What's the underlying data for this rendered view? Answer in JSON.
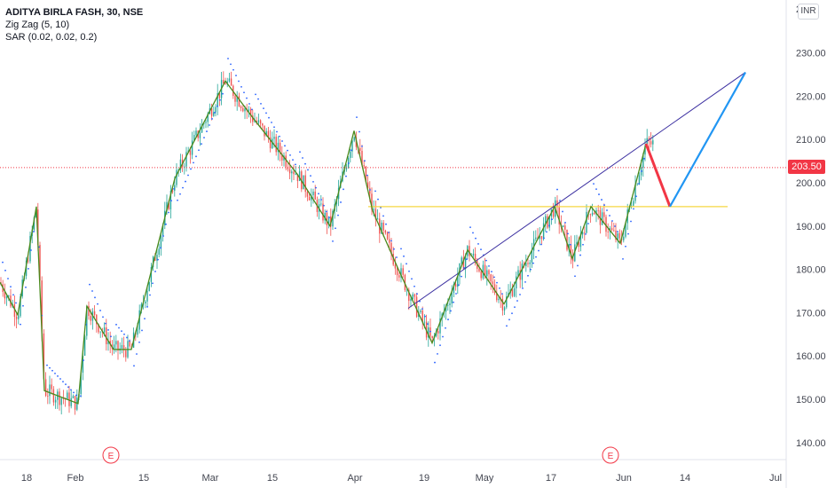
{
  "header": {
    "symbol_line": "ADITYA BIRLA FASH, 30, NSE",
    "indicator_1": "Zig Zag (5, 10)",
    "indicator_2": "SAR (0.02, 0.02, 0.2)",
    "currency": "INR"
  },
  "price_axis": {
    "top_partial_label": "2",
    "last_price": "203.50",
    "last_price_color": "#f23645"
  },
  "earnings_markers": [
    {
      "label": "E",
      "x_label_ref": "Feb-area"
    },
    {
      "label": "E",
      "x_label_ref": "Jun-area"
    }
  ],
  "colors": {
    "zigzag": "#4a8a1c",
    "sar": "#2962ff",
    "candle_up": "#26a69a",
    "candle_down": "#ef5350",
    "trendline": "#3b2fa0",
    "support": "#f5d742",
    "projection_down": "#f23645",
    "projection_up": "#2196f3",
    "price_line": "#f23645",
    "earnings": "#f23645"
  },
  "chart_data": {
    "type": "line",
    "title": "ADITYA BIRLA FASH, 30, NSE",
    "xlabel": "",
    "ylabel": "",
    "x_ticks": [
      "18",
      "Feb",
      "15",
      "Mar",
      "15",
      "Apr",
      "19",
      "May",
      "17",
      "Jun",
      "14",
      "Jul"
    ],
    "y_ticks": [
      140,
      150,
      160,
      170,
      180,
      190,
      200,
      210,
      220,
      230
    ],
    "ylim": [
      136,
      240
    ],
    "grid": false,
    "last_price": 203.5,
    "series": [
      {
        "name": "Zig Zag (5, 10)",
        "x": [
          0,
          20,
          41,
          50,
          88,
          98,
          128,
          148,
          197,
          254,
          285,
          335,
          372,
          399,
          420,
          449,
          487,
          527,
          568,
          625,
          645,
          666,
          699,
          728
        ],
        "values": [
          177,
          169.5,
          194.5,
          152,
          149,
          171.5,
          161.5,
          161.5,
          201,
          223.5,
          215,
          202,
          190,
          212,
          193.5,
          180,
          163,
          184.5,
          172,
          194.5,
          182.5,
          194.5,
          186,
          209
        ]
      },
      {
        "name": "Projection",
        "x": [
          728,
          755,
          840
        ],
        "values": [
          209,
          194.5,
          225.5
        ]
      },
      {
        "name": "Trendline",
        "x": [
          460,
          840
        ],
        "values": [
          171,
          225.5
        ]
      },
      {
        "name": "Support",
        "x": [
          415,
          820
        ],
        "values": [
          194.5,
          194.5
        ]
      }
    ]
  }
}
